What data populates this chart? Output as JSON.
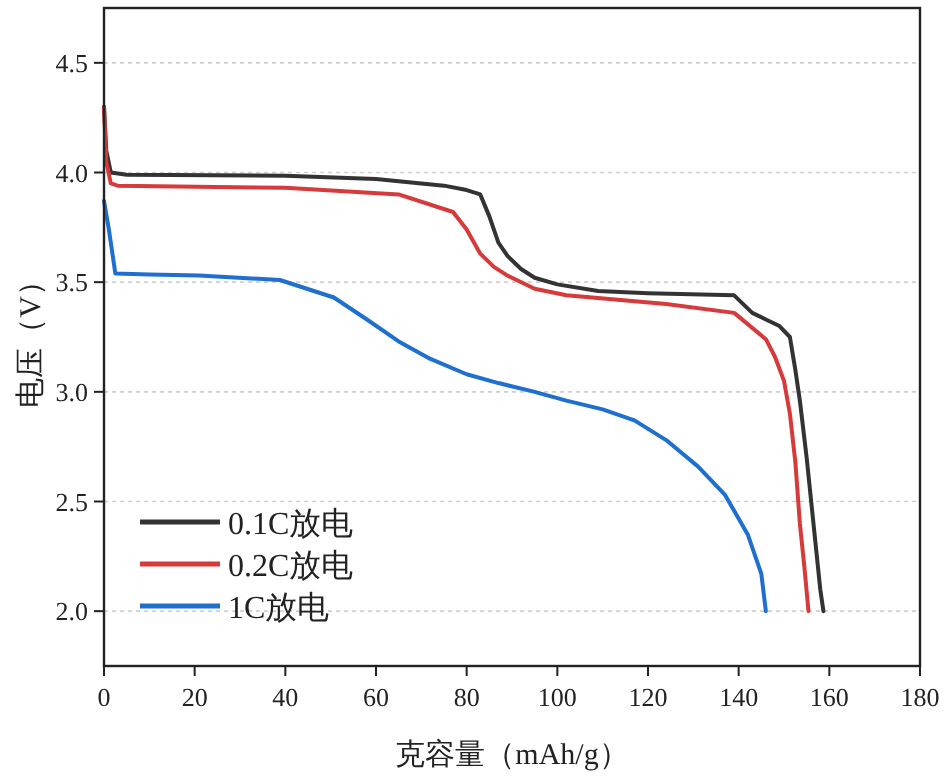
{
  "chart_data": {
    "type": "line",
    "xlabel": "克容量（mAh/g）",
    "ylabel": "电压（V）",
    "xlim": [
      0,
      180
    ],
    "ylim": [
      1.75,
      4.75
    ],
    "xticks": [
      0,
      20,
      40,
      60,
      80,
      100,
      120,
      140,
      160,
      180
    ],
    "yticks": [
      {
        "value": 2,
        "label": "2.0"
      },
      {
        "value": 2.5,
        "label": "2.5"
      },
      {
        "value": 3,
        "label": "3.0"
      },
      {
        "value": 3.5,
        "label": "3.5"
      },
      {
        "value": 4,
        "label": "4.0"
      },
      {
        "value": 4.5,
        "label": "4.5"
      }
    ],
    "grid": "y",
    "legend": "bottom left",
    "marker": "none",
    "line_style": "solid",
    "series": [
      {
        "name": "0.1C放电",
        "color": "#333333",
        "x": [
          0,
          0.5,
          1.5,
          5,
          40,
          60,
          75,
          80,
          83,
          85,
          87,
          89,
          92,
          95,
          100,
          109,
          120,
          139,
          143,
          146,
          149,
          151.3,
          152.5,
          153.5,
          155,
          156.5,
          158,
          158.7
        ],
        "values": [
          4.3,
          4.1,
          4.0,
          3.99,
          3.985,
          3.97,
          3.94,
          3.92,
          3.9,
          3.8,
          3.68,
          3.62,
          3.56,
          3.52,
          3.49,
          3.46,
          3.45,
          3.44,
          3.36,
          3.33,
          3.3,
          3.25,
          3.1,
          2.96,
          2.7,
          2.4,
          2.1,
          2.0
        ]
      },
      {
        "name": "0.2C放电",
        "color": "#d63a3a",
        "x": [
          0,
          0.5,
          1.5,
          3,
          40,
          65,
          77,
          80,
          83,
          86,
          89,
          95,
          102,
          124,
          139,
          146,
          148,
          150,
          151.3,
          152.5,
          153.5,
          154.5,
          155.4
        ],
        "values": [
          4.3,
          4.05,
          3.95,
          3.94,
          3.93,
          3.9,
          3.82,
          3.74,
          3.63,
          3.57,
          3.53,
          3.47,
          3.44,
          3.4,
          3.36,
          3.24,
          3.16,
          3.05,
          2.9,
          2.68,
          2.4,
          2.2,
          2.0
        ]
      },
      {
        "name": "1C放电",
        "color": "#1f6fcf",
        "x": [
          0,
          1,
          2.5,
          10,
          21,
          38.8,
          50.7,
          58,
          65,
          72,
          80,
          87,
          95,
          102,
          110,
          117,
          124,
          131,
          137,
          142,
          145,
          146
        ],
        "values": [
          3.87,
          3.75,
          3.54,
          3.535,
          3.53,
          3.51,
          3.43,
          3.33,
          3.23,
          3.15,
          3.08,
          3.04,
          3.0,
          2.96,
          2.92,
          2.87,
          2.78,
          2.66,
          2.53,
          2.35,
          2.17,
          2.0
        ]
      }
    ]
  }
}
